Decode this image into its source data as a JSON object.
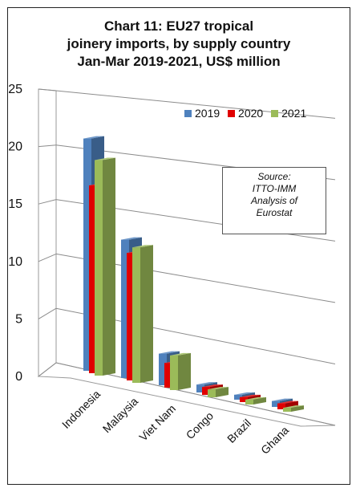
{
  "chart_data": {
    "type": "bar",
    "title_lines": [
      "Chart 11: EU27 tropical",
      "joinery imports, by supply country",
      "Jan-Mar 2019-2021, US$ million"
    ],
    "categories": [
      "Indonesia",
      "Malaysia",
      "Viet Nam",
      "Congo",
      "Brazil",
      "Ghana"
    ],
    "series": [
      {
        "name": "2019",
        "color": "#4F81BD",
        "values": [
          23.5,
          14.0,
          3.2,
          0.8,
          0.5,
          0.6
        ]
      },
      {
        "name": "2020",
        "color": "#E00000",
        "values": [
          19.0,
          12.9,
          2.5,
          0.8,
          0.5,
          0.6
        ]
      },
      {
        "name": "2021",
        "color": "#9BBB59",
        "values": [
          21.8,
          13.7,
          3.5,
          0.8,
          0.5,
          0.4
        ]
      }
    ],
    "yticks": [
      0,
      5,
      10,
      15,
      20,
      25
    ],
    "ylim": [
      0,
      25
    ],
    "grid": true,
    "legend": "top-right",
    "annotation_lines": [
      "Source:",
      "ITTO-IMM",
      "Analysis of",
      "Eurostat"
    ]
  }
}
